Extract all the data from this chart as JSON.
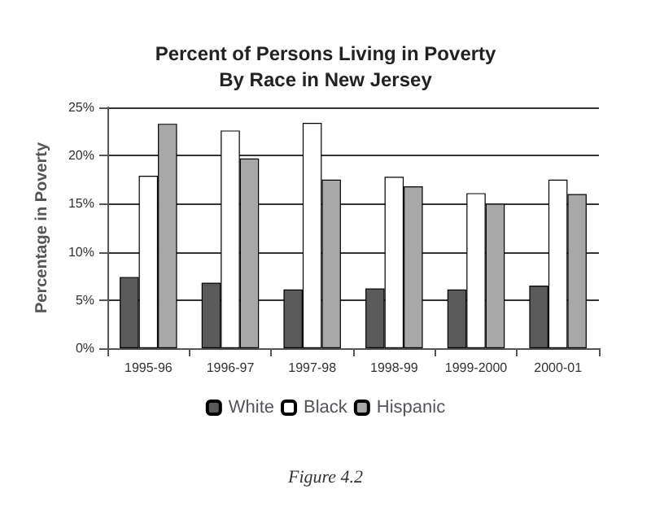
{
  "chart_data": {
    "type": "bar",
    "title": "Percent of Persons Living in Poverty\nBy Race in New Jersey",
    "ylabel": "Percentage in Poverty",
    "categories": [
      "1995-96",
      "1996-97",
      "1997-98",
      "1998-99",
      "1999-2000",
      "2000-01"
    ],
    "series": [
      {
        "name": "White",
        "color": "#5a5a5a",
        "values": [
          7.4,
          6.8,
          6.1,
          6.2,
          6.1,
          6.5
        ]
      },
      {
        "name": "Black",
        "color": "#ffffff",
        "values": [
          17.9,
          22.6,
          23.4,
          17.8,
          16.1,
          17.5
        ]
      },
      {
        "name": "Hispanic",
        "color": "#a8a8a8",
        "values": [
          23.3,
          19.7,
          17.5,
          16.8,
          15.0,
          16.0
        ]
      }
    ],
    "ylim": [
      0,
      25
    ],
    "yticks": [
      {
        "value": 0,
        "label": "0%"
      },
      {
        "value": 5,
        "label": "5%"
      },
      {
        "value": 10,
        "label": "10%"
      },
      {
        "value": 15,
        "label": "15%"
      },
      {
        "value": 20,
        "label": "20%"
      },
      {
        "value": 25,
        "label": "25%"
      }
    ],
    "grid": "y",
    "legend": "bottom",
    "annotations": [
      "Figure 4.2"
    ]
  }
}
